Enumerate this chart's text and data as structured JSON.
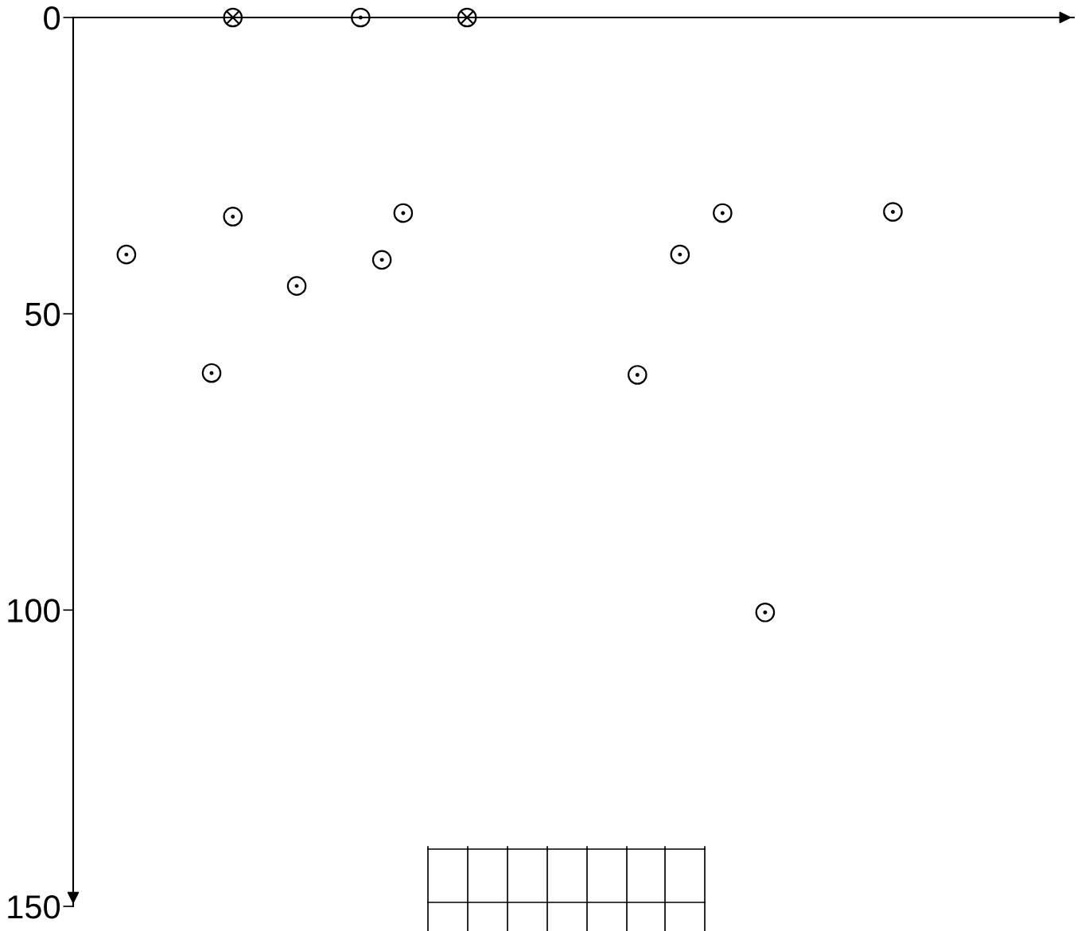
{
  "chart_data": {
    "type": "scatter",
    "categories": [
      null,
      null,
      null,
      null,
      null,
      null,
      null,
      null,
      null,
      null,
      null,
      null,
      null,
      null,
      null,
      null,
      null,
      null,
      null,
      null,
      null,
      null,
      null,
      null,
      null,
      null,
      null,
      null,
      null,
      null,
      null,
      null,
      null,
      null,
      null,
      null,
      null,
      null,
      null,
      null,
      null,
      null,
      null,
      null,
      null,
      null,
      null
    ],
    "series": [
      {
        "color": "#000000",
        "marker": "circle",
        "values": [
          null,
          null,
          40,
          null,
          null,
          null,
          60,
          33.6,
          null,
          null,
          45.3,
          null,
          null,
          0,
          40.9,
          33,
          null,
          null,
          null,
          null,
          null,
          null,
          null,
          null,
          null,
          null,
          60.3,
          null,
          40,
          null,
          33,
          null,
          100.4,
          null,
          null,
          null,
          null,
          null,
          32.8,
          null,
          null,
          null,
          null,
          null,
          null,
          null,
          null
        ]
      },
      {
        "color": "#000000",
        "marker": "cross",
        "values": [
          null,
          null,
          null,
          null,
          null,
          null,
          null,
          0,
          null,
          null,
          null,
          null,
          null,
          null,
          null,
          null,
          null,
          null,
          0,
          null,
          null,
          null,
          null,
          null,
          null,
          null,
          null,
          null,
          null,
          null,
          null,
          null,
          null,
          null,
          null,
          null,
          null,
          null,
          null,
          null,
          null,
          null,
          null,
          null,
          null,
          null,
          null
        ]
      }
    ],
    "ylim": [
      150,
      0
    ],
    "yticks": [
      0,
      50,
      100,
      150
    ],
    "tick_labels": "y",
    "grid": false,
    "legend": false
  }
}
